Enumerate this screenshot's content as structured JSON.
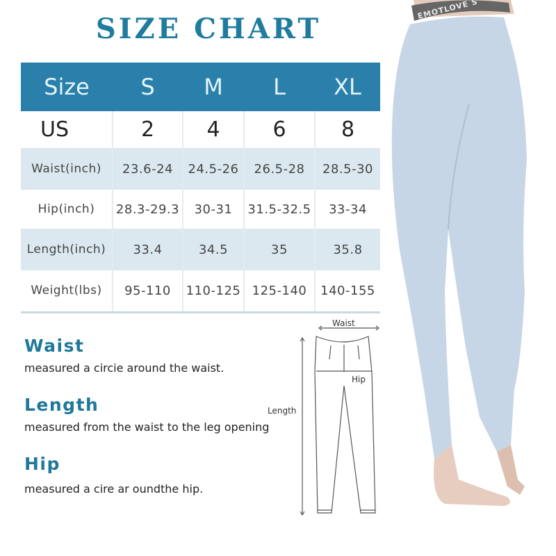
{
  "title": "SIZE CHART",
  "table": {
    "headers": [
      "Size",
      "S",
      "M",
      "L",
      "XL"
    ],
    "us_row": [
      "US",
      "2",
      "4",
      "6",
      "8"
    ],
    "rows": [
      {
        "label": "Waist(inch)",
        "values": [
          "23.6-24",
          "24.5-26",
          "26.5-28",
          "28.5-30"
        ]
      },
      {
        "label": "Hip(inch)",
        "values": [
          "28.3-29.3",
          "30-31",
          "31.5-32.5",
          "33-34"
        ]
      },
      {
        "label": "Length(inch)",
        "values": [
          "33.4",
          "34.5",
          "35",
          "35.8"
        ]
      },
      {
        "label": "Weight(lbs)",
        "values": [
          "95-110",
          "110-125",
          "125-140",
          "140-155"
        ]
      }
    ]
  },
  "guide": [
    {
      "heading": "Waist",
      "text": "measured a circie around the waist."
    },
    {
      "heading": "Length",
      "text": "measured from the waist to the leg opening"
    },
    {
      "heading": "Hip",
      "text": "measured a cire ar oundthe hip."
    }
  ],
  "diagram": {
    "waist": "Waist",
    "hip": "Hip",
    "length": "Length"
  },
  "photo": {
    "waistband_text": "EMOTLOVE S"
  },
  "colors": {
    "accent": "#2a80aa",
    "title": "#1f7c9e",
    "band": "#dce8ef",
    "leggings": "#c6d6e6"
  }
}
